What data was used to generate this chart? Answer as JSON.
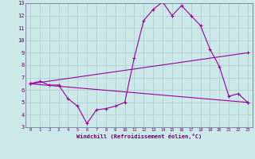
{
  "xlabel": "Windchill (Refroidissement éolien,°C)",
  "bg_color": "#cce8e8",
  "grid_color": "#aacccc",
  "line_color": "#990099",
  "xlim": [
    -0.5,
    23.5
  ],
  "ylim": [
    3,
    13
  ],
  "yticks": [
    3,
    4,
    5,
    6,
    7,
    8,
    9,
    10,
    11,
    12,
    13
  ],
  "xticks": [
    0,
    1,
    2,
    3,
    4,
    5,
    6,
    7,
    8,
    9,
    10,
    11,
    12,
    13,
    14,
    15,
    16,
    17,
    18,
    19,
    20,
    21,
    22,
    23
  ],
  "series1_x": [
    0,
    1,
    2,
    3,
    4,
    5,
    6,
    7,
    8,
    9,
    10,
    11,
    12,
    13,
    14,
    15,
    16,
    17,
    18,
    19,
    20,
    21,
    22,
    23
  ],
  "series1_y": [
    6.5,
    6.7,
    6.4,
    6.4,
    5.3,
    4.7,
    3.3,
    4.4,
    4.5,
    4.7,
    5.0,
    8.6,
    11.6,
    12.5,
    13.1,
    12.0,
    12.8,
    12.0,
    11.2,
    9.3,
    7.9,
    5.5,
    5.7,
    5.0
  ],
  "series2_x": [
    0,
    23
  ],
  "series2_y": [
    6.5,
    9.0
  ],
  "series3_x": [
    0,
    23
  ],
  "series3_y": [
    6.5,
    5.0
  ]
}
